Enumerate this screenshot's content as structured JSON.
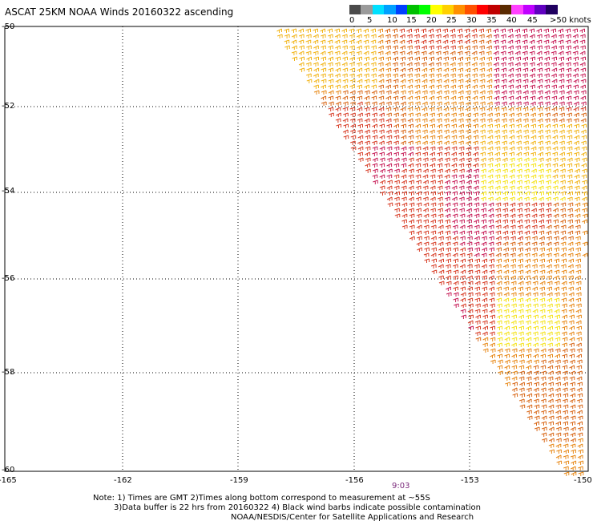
{
  "title": "ASCAT 25KM NOAA Winds 20160322 ascending",
  "colorbar": {
    "labels": [
      "0",
      "5",
      "10",
      "15",
      "20",
      "25",
      "30",
      "35",
      "40",
      "45",
      ">50 knots"
    ],
    "colors": [
      "#4a4a4a",
      "#9a9a9a",
      "#00e0ff",
      "#00a0ff",
      "#0040ff",
      "#00c000",
      "#00ff00",
      "#ffff00",
      "#ffd000",
      "#ff9000",
      "#ff5000",
      "#ff0000",
      "#c00000",
      "#5a2a00",
      "#ff40ff",
      "#c000ff",
      "#6000c0",
      "#200060"
    ]
  },
  "axes": {
    "y_labels": [
      "-50",
      "-52",
      "-54",
      "-56",
      "-58",
      "-60"
    ],
    "x_labels": [
      "-165",
      "-162",
      "-159",
      "-156",
      "-153",
      "-150"
    ]
  },
  "time_label": "9:03",
  "notes": [
    "Note: 1) Times are GMT 2)Times along bottom correspond to measurement at ~55S",
    "3)Data buffer is 22 hrs from 20160322 4) Black wind barbs indicate possible contamination",
    "NOAA/NESDIS/Center for Satellite Applications and Research"
  ],
  "wind_colors": {
    "yellow": "#f5e31a",
    "light_orange": "#f2b51a",
    "orange": "#e88a1a",
    "dark_orange": "#d9691a",
    "red_orange": "#d8402a",
    "crimson": "#c8205a"
  }
}
